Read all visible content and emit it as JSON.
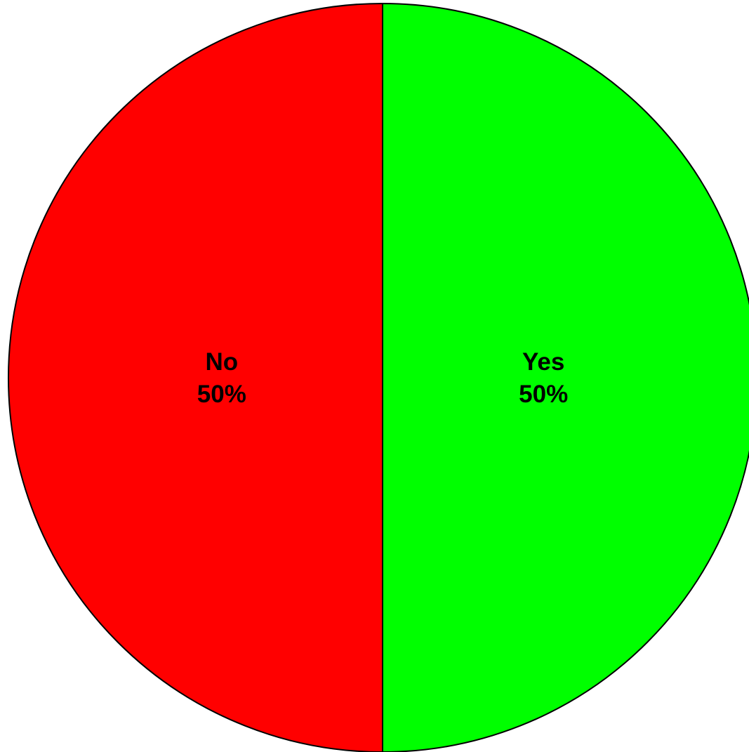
{
  "chart_data": {
    "type": "pie",
    "title": "",
    "slices": [
      {
        "label": "Yes",
        "value": 50,
        "percent_label": "50%",
        "color": "#00FF00"
      },
      {
        "label": "No",
        "value": 50,
        "percent_label": "50%",
        "color": "#FF0000"
      }
    ],
    "start_angle_deg": 90,
    "direction": "clockwise",
    "outline_color": "#000000",
    "legend": "none"
  }
}
